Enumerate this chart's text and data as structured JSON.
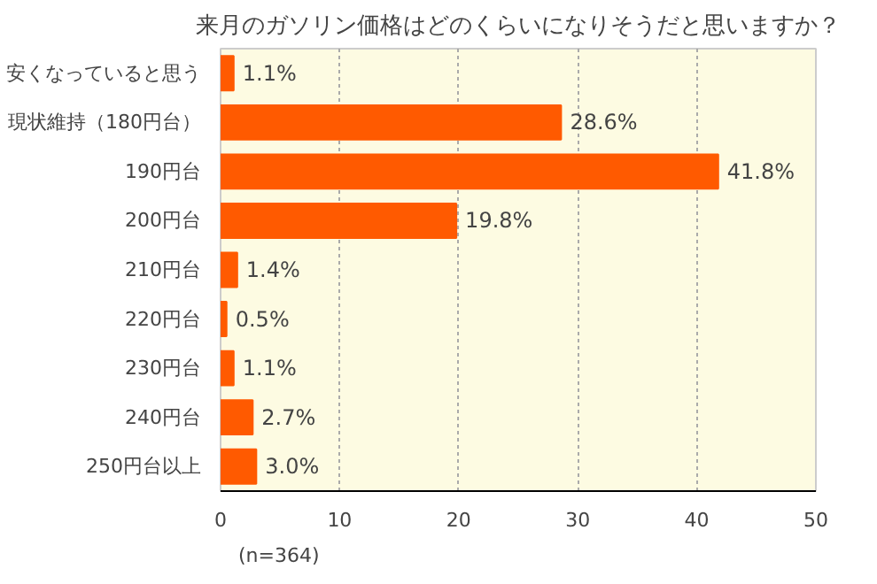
{
  "chart_data": {
    "type": "bar",
    "orientation": "horizontal",
    "title": "来月のガソリン価格はどのくらいになりそうだと思いますか？",
    "categories": [
      "安くなっていると思う",
      "現状維持（180円台）",
      "190円台",
      "200円台",
      "210円台",
      "220円台",
      "230円台",
      "240円台",
      "250円台以上"
    ],
    "values": [
      1.1,
      28.6,
      41.8,
      19.8,
      1.4,
      0.5,
      1.1,
      2.7,
      3.0
    ],
    "value_labels": [
      "1.1%",
      "28.6%",
      "41.8%",
      "19.8%",
      "1.4%",
      "0.5%",
      "1.1%",
      "2.7%",
      "3.0%"
    ],
    "color": "#ff5a00",
    "xlim": [
      0,
      50
    ],
    "xticks": [
      0,
      10,
      20,
      30,
      40,
      50
    ],
    "grid": "x",
    "annotations": [
      "(n=364)"
    ]
  }
}
